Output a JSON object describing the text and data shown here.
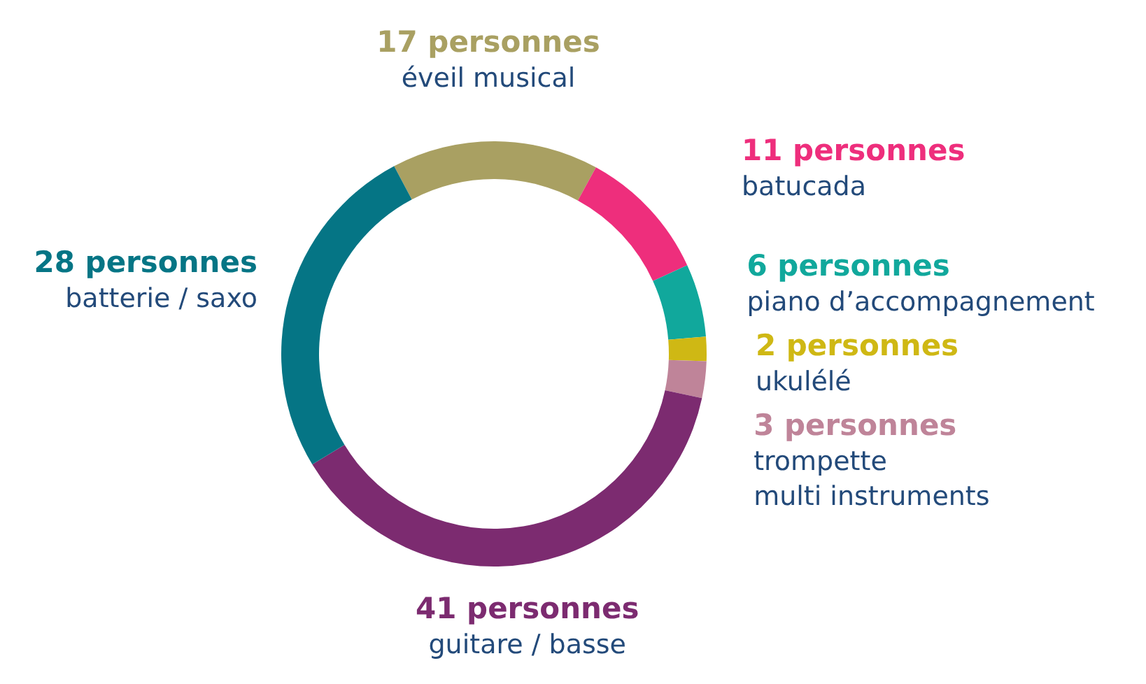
{
  "chart_data": {
    "type": "donut",
    "categories": [
      "éveil musical",
      "batucada",
      "piano d’accompagnement",
      "ukulélé",
      "trompette multi instruments",
      "guitare / basse",
      "batterie / saxo"
    ],
    "values": [
      17,
      11,
      6,
      2,
      3,
      41,
      28
    ],
    "value_labels": [
      "17 personnes",
      "11 personnes",
      "6 personnes",
      "2 personnes",
      "3 personnes",
      "41 personnes",
      "28 personnes"
    ],
    "colors": [
      "#a9a062",
      "#ee2e7c",
      "#11a89c",
      "#cfb814",
      "#bf8499",
      "#7c2b70",
      "#057585"
    ]
  }
}
